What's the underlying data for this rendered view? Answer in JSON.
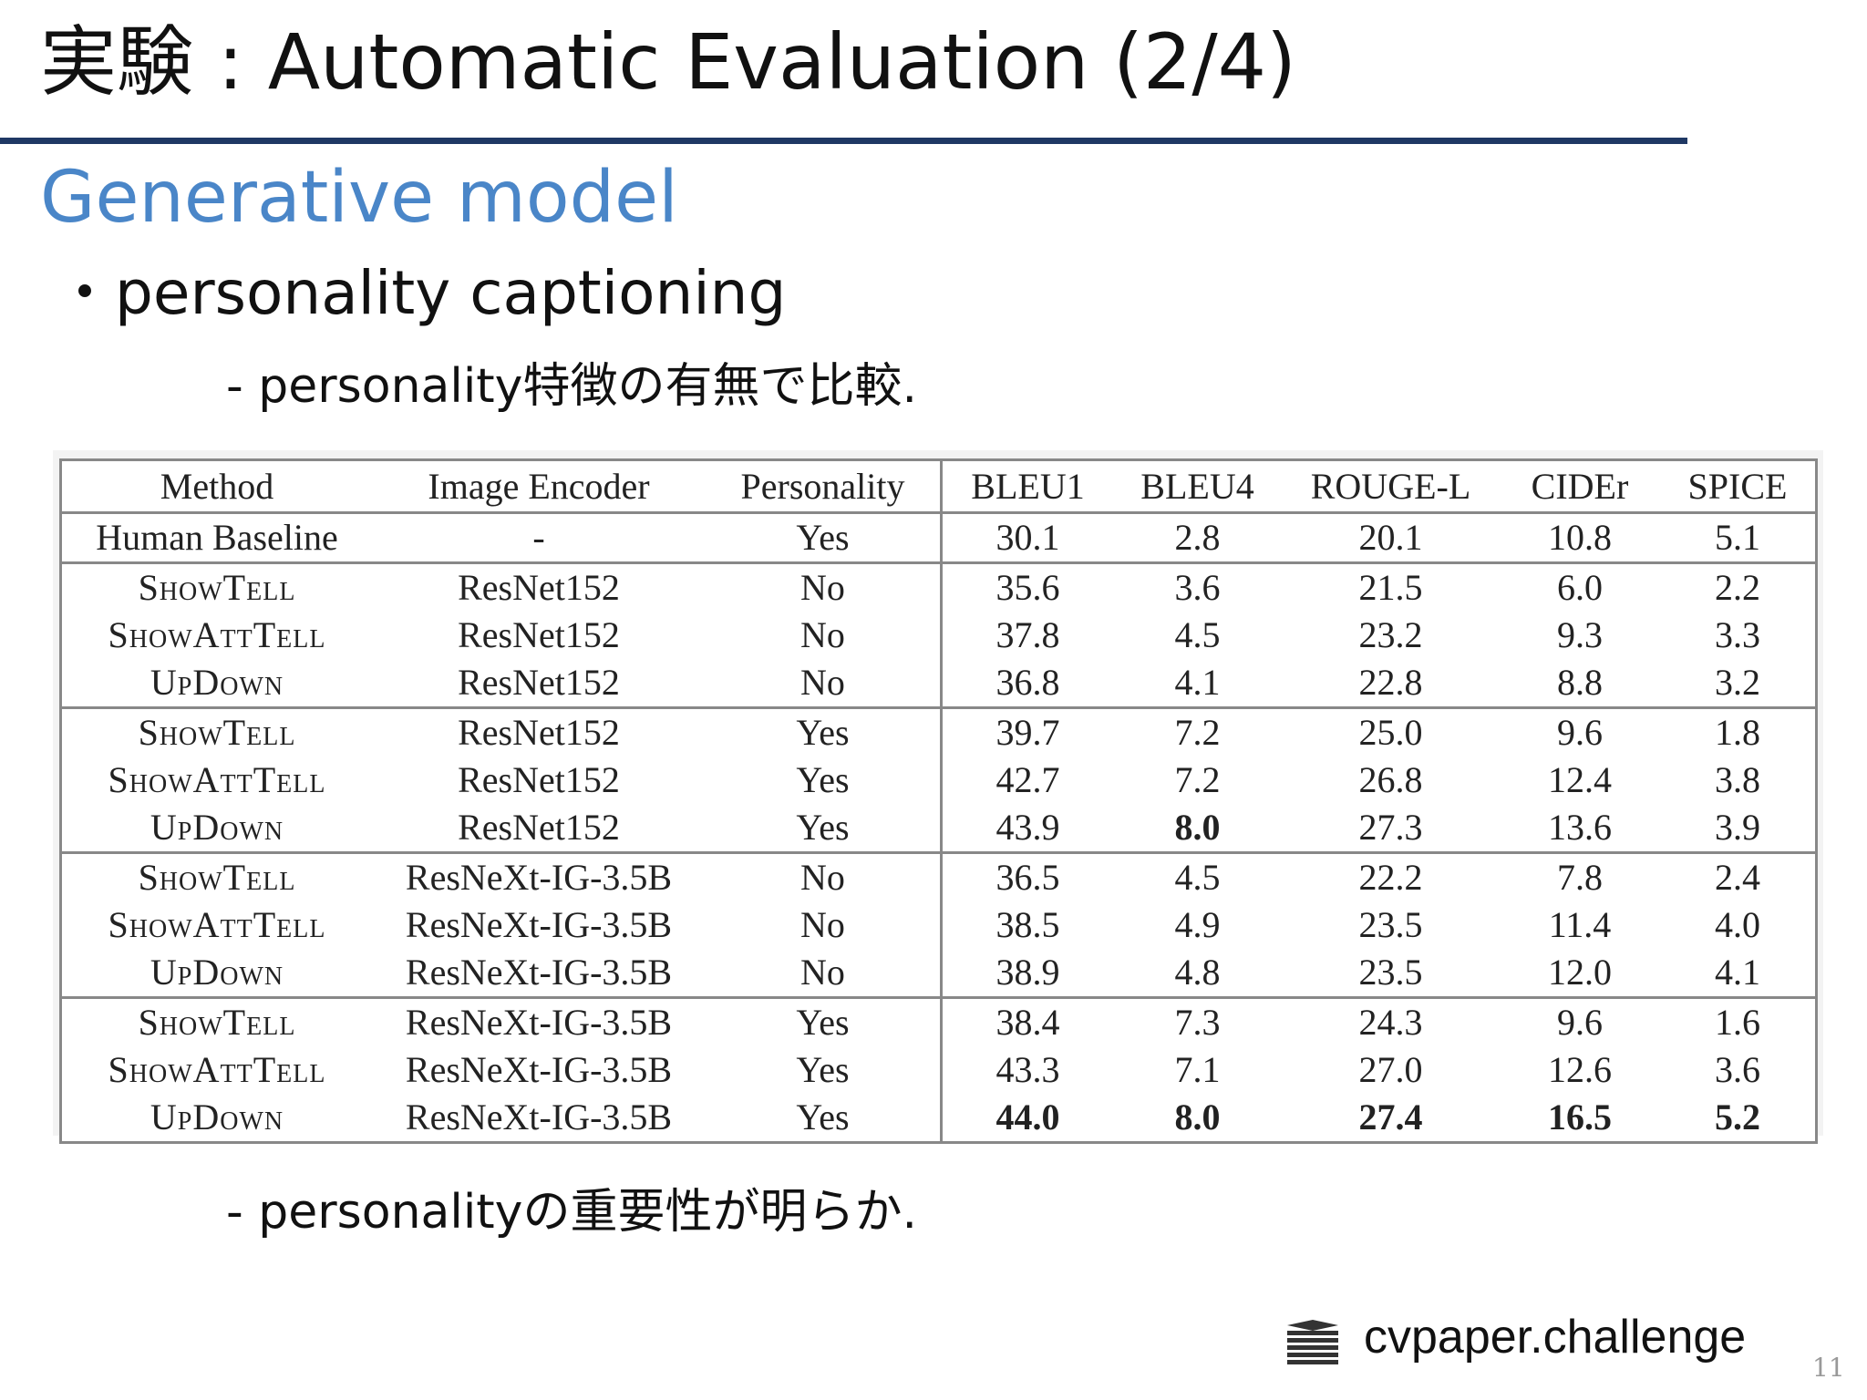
{
  "header": {
    "title": "実験 : Automatic Evaluation (2/4)"
  },
  "section": {
    "title": "Generative model"
  },
  "bullet": {
    "text": "personality captioning",
    "sub": "- personality特徴の有無で比較."
  },
  "table": {
    "columns": [
      "Method",
      "Image Encoder",
      "Personality",
      "BLEU1",
      "BLEU4",
      "ROUGE-L",
      "CIDEr",
      "SPICE"
    ],
    "rows": [
      [
        "Human Baseline",
        "-",
        "Yes",
        "30.1",
        "2.8",
        "20.1",
        "10.8",
        "5.1"
      ],
      [
        "ShowTell",
        "ResNet152",
        "No",
        "35.6",
        "3.6",
        "21.5",
        "6.0",
        "2.2"
      ],
      [
        "ShowAttTell",
        "ResNet152",
        "No",
        "37.8",
        "4.5",
        "23.2",
        "9.3",
        "3.3"
      ],
      [
        "UpDown",
        "ResNet152",
        "No",
        "36.8",
        "4.1",
        "22.8",
        "8.8",
        "3.2"
      ],
      [
        "ShowTell",
        "ResNet152",
        "Yes",
        "39.7",
        "7.2",
        "25.0",
        "9.6",
        "1.8"
      ],
      [
        "ShowAttTell",
        "ResNet152",
        "Yes",
        "42.7",
        "7.2",
        "26.8",
        "12.4",
        "3.8"
      ],
      [
        "UpDown",
        "ResNet152",
        "Yes",
        "43.9",
        "8.0",
        "27.3",
        "13.6",
        "3.9"
      ],
      [
        "ShowTell",
        "ResNeXt-IG-3.5B",
        "No",
        "36.5",
        "4.5",
        "22.2",
        "7.8",
        "2.4"
      ],
      [
        "ShowAttTell",
        "ResNeXt-IG-3.5B",
        "No",
        "38.5",
        "4.9",
        "23.5",
        "11.4",
        "4.0"
      ],
      [
        "UpDown",
        "ResNeXt-IG-3.5B",
        "No",
        "38.9",
        "4.8",
        "23.5",
        "12.0",
        "4.1"
      ],
      [
        "ShowTell",
        "ResNeXt-IG-3.5B",
        "Yes",
        "38.4",
        "7.3",
        "24.3",
        "9.6",
        "1.6"
      ],
      [
        "ShowAttTell",
        "ResNeXt-IG-3.5B",
        "Yes",
        "43.3",
        "7.1",
        "27.0",
        "12.6",
        "3.6"
      ],
      [
        "UpDown",
        "ResNeXt-IG-3.5B",
        "Yes",
        "44.0",
        "8.0",
        "27.4",
        "16.5",
        "5.2"
      ]
    ]
  },
  "conclusion": {
    "text": "- personalityの重要性が明らか."
  },
  "footer": {
    "logo": "cvpaper.challenge",
    "page": "11"
  }
}
